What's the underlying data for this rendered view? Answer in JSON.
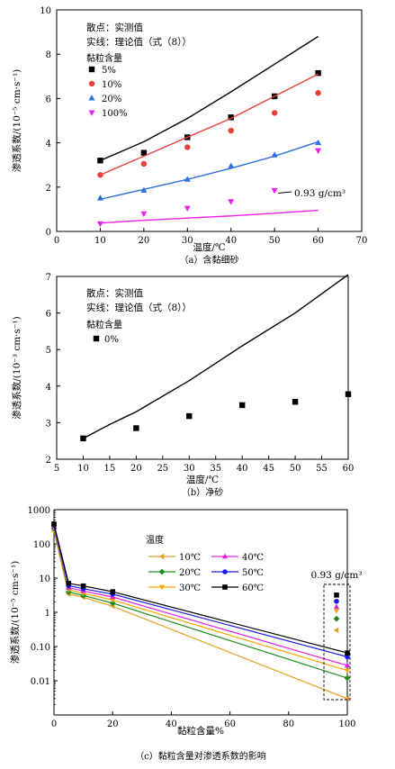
{
  "chart_data": [
    {
      "type": "scatter",
      "caption": "（a）含黏细砂",
      "xlabel": "温度/℃",
      "ylabel": "渗透系数/(10⁻⁵ cm·s⁻¹)",
      "xlim": [
        0,
        70
      ],
      "ylim": [
        0,
        10
      ],
      "xticks": [
        0,
        10,
        20,
        30,
        40,
        50,
        60,
        70
      ],
      "yticks": [
        0,
        2,
        4,
        6,
        8,
        10
      ],
      "notes": [
        "散点：实测值",
        "实线：理论值（式（8））"
      ],
      "legend_title": "黏粒含量",
      "legend_position": "top-left",
      "annotation": "0.93 g/cm³",
      "series": [
        {
          "name": "5%",
          "color": "#000000",
          "marker": "square",
          "x": [
            10,
            20,
            30,
            40,
            50,
            60
          ],
          "y": [
            3.2,
            3.55,
            4.25,
            5.15,
            6.1,
            7.15
          ],
          "theory": [
            [
              10,
              3.2
            ],
            [
              20,
              4.05
            ],
            [
              30,
              5.1
            ],
            [
              40,
              6.3
            ],
            [
              50,
              7.55
            ],
            [
              60,
              8.8
            ]
          ]
        },
        {
          "name": "10%",
          "color": "#e8403a",
          "marker": "circle",
          "x": [
            10,
            20,
            30,
            40,
            50,
            60
          ],
          "y": [
            2.55,
            3.05,
            3.8,
            4.55,
            5.35,
            6.25
          ],
          "theory": [
            [
              10,
              2.55
            ],
            [
              20,
              3.4
            ],
            [
              30,
              4.25
            ],
            [
              40,
              5.1
            ],
            [
              50,
              6.1
            ],
            [
              60,
              7.1
            ]
          ]
        },
        {
          "name": "20%",
          "color": "#2f6fe0",
          "marker": "triangle-up",
          "x": [
            10,
            20,
            30,
            40,
            50,
            60
          ],
          "y": [
            1.5,
            1.85,
            2.35,
            2.95,
            3.45,
            4.0
          ],
          "theory": [
            [
              10,
              1.45
            ],
            [
              20,
              1.9
            ],
            [
              30,
              2.35
            ],
            [
              40,
              2.85
            ],
            [
              50,
              3.4
            ],
            [
              60,
              4.05
            ]
          ]
        },
        {
          "name": "100%",
          "color": "#ee22ee",
          "marker": "triangle-down",
          "x": [
            10,
            20,
            30,
            40,
            50,
            60
          ],
          "y": [
            0.35,
            0.8,
            1.05,
            1.35,
            1.85,
            3.65
          ],
          "theory": [
            [
              10,
              0.38
            ],
            [
              20,
              0.5
            ],
            [
              30,
              0.6
            ],
            [
              40,
              0.7
            ],
            [
              50,
              0.82
            ],
            [
              60,
              0.95
            ]
          ]
        }
      ]
    },
    {
      "type": "scatter",
      "caption": "（b）净砂",
      "xlabel": "温度/℃",
      "ylabel": "渗透系数/(10⁻³ cm·s⁻¹)",
      "xlim": [
        5,
        60
      ],
      "ylim": [
        2,
        7
      ],
      "xticks": [
        5,
        10,
        15,
        20,
        25,
        30,
        35,
        40,
        45,
        50,
        55,
        60
      ],
      "yticks": [
        2,
        3,
        4,
        5,
        6,
        7
      ],
      "notes": [
        "散点：实测值",
        "实线：理论值（式（8））"
      ],
      "legend_title": "黏粒含量",
      "legend_position": "top-left",
      "series": [
        {
          "name": "0%",
          "color": "#000000",
          "marker": "square",
          "x": [
            10,
            20,
            30,
            40,
            50,
            60
          ],
          "y": [
            2.57,
            2.85,
            3.18,
            3.48,
            3.57,
            3.78
          ],
          "theory": [
            [
              10,
              2.57
            ],
            [
              15,
              2.95
            ],
            [
              20,
              3.3
            ],
            [
              30,
              4.15
            ],
            [
              40,
              5.1
            ],
            [
              50,
              6.0
            ],
            [
              60,
              7.05
            ]
          ]
        }
      ]
    },
    {
      "type": "line",
      "caption": "（c）黏粒含量对渗透系数的影响",
      "xlabel": "黏粒含量%",
      "ylabel": "渗透系数/(10⁻⁵ cm·s⁻¹)",
      "xlim": [
        0,
        100
      ],
      "ylim": [
        0.001,
        1000
      ],
      "yscale": "log",
      "xticks": [
        0,
        20,
        40,
        60,
        80,
        100
      ],
      "yticks": [
        0.01,
        0.1,
        1,
        10,
        100,
        1000
      ],
      "ytick_labels": [
        "0.01",
        "0.10",
        "1",
        "10",
        "100",
        "1000"
      ],
      "legend_title": "温度",
      "legend_position": "top-center",
      "annotation": "0.93 g/cm³",
      "categories_x": [
        0,
        5,
        10,
        20,
        100
      ],
      "series": [
        {
          "name": "10℃",
          "color": "#e0a020",
          "marker": "triangle-left",
          "y": [
            240,
            3.4,
            2.75,
            1.5,
            0.003
          ],
          "box_y": 0.3
        },
        {
          "name": "20℃",
          "color": "#1e8a1e",
          "marker": "diamond",
          "y": [
            280,
            3.9,
            3.1,
            1.85,
            0.012
          ],
          "box_y": 0.65
        },
        {
          "name": "30℃",
          "color": "#f0a800",
          "marker": "triangle-down",
          "y": [
            310,
            4.6,
            3.6,
            2.3,
            0.02
          ],
          "box_y": 1.1
        },
        {
          "name": "40℃",
          "color": "#e020e0",
          "marker": "triangle-up",
          "y": [
            330,
            5.2,
            4.2,
            2.8,
            0.028
          ],
          "box_y": 1.45
        },
        {
          "name": "50℃",
          "color": "#1a1ae8",
          "marker": "circle",
          "y": [
            350,
            6.0,
            4.9,
            3.4,
            0.05
          ],
          "box_y": 2.1
        },
        {
          "name": "60℃",
          "color": "#000000",
          "marker": "square",
          "y": [
            380,
            7.0,
            5.9,
            4.0,
            0.065
          ],
          "box_y": 3.2
        }
      ]
    }
  ]
}
